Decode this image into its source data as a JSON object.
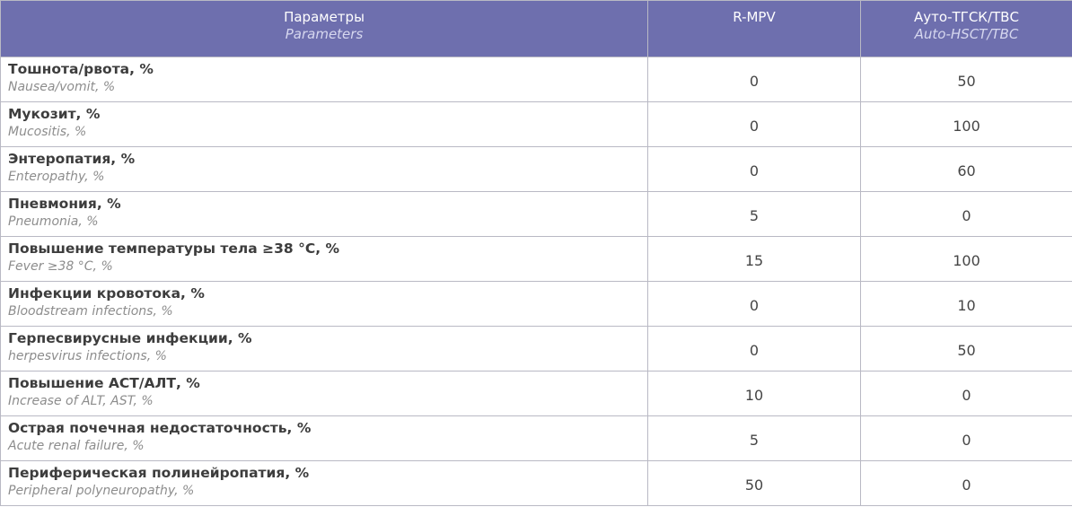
{
  "table": {
    "headers": [
      {
        "main": "Параметры",
        "sub": "Parameters"
      },
      {
        "main": "R-MPV",
        "sub": ""
      },
      {
        "main": "Ауто-ТГСК/ТВС",
        "sub": "Auto-HSCT/TBC"
      }
    ],
    "rows": [
      {
        "ru": "Тошнота/рвота, %",
        "en": "Nausea/vomit, %",
        "rmpv": "0",
        "auto": "50"
      },
      {
        "ru": "Мукозит, %",
        "en": "Mucositis, %",
        "rmpv": "0",
        "auto": "100"
      },
      {
        "ru": "Энтеропатия, %",
        "en": "Enteropathy, %",
        "rmpv": "0",
        "auto": "60"
      },
      {
        "ru": "Пневмония, %",
        "en": "Pneumonia, %",
        "rmpv": "5",
        "auto": "0"
      },
      {
        "ru": "Повышение температуры тела ≥38 °С, %",
        "en": "Fever ≥38  °C, %",
        "rmpv": "15",
        "auto": "100"
      },
      {
        "ru": "Инфекции кровотока, %",
        "en": "Bloodstream infections, %",
        "rmpv": "0",
        "auto": "10"
      },
      {
        "ru": "Герпесвирусные инфекции, %",
        "en": "herpesvirus infections, %",
        "rmpv": "0",
        "auto": "50"
      },
      {
        "ru": "Повышение АСТ/АЛТ, %",
        "en": "Increase of ALT, AST, %",
        "rmpv": "10",
        "auto": "0"
      },
      {
        "ru": "Острая почечная недостаточность, %",
        "en": "Acute renal failure, %",
        "rmpv": "5",
        "auto": "0"
      },
      {
        "ru": "Периферическая полинейропатия, %",
        "en": "Peripheral polyneuropathy, %",
        "rmpv": "50",
        "auto": "0"
      }
    ]
  },
  "colors": {
    "header_bg": "#6e6fae",
    "border": "#b9b9c4"
  }
}
